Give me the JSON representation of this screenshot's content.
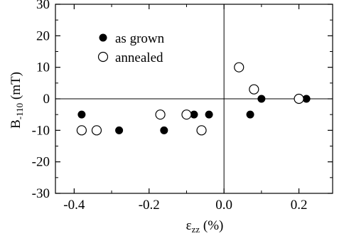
{
  "chart_data": {
    "type": "scatter",
    "xlabel": "ε",
    "xlabel_sub": "zz",
    "xlabel_unit": " (%)",
    "ylabel": "B",
    "ylabel_sub": "-110",
    "ylabel_unit": " (mT)",
    "xlim": [
      -0.45,
      0.29
    ],
    "ylim": [
      -30,
      30
    ],
    "xticks": [
      -0.4,
      -0.2,
      0.0,
      0.2
    ],
    "xtick_labels": [
      "-0.4",
      "-0.2",
      "0.0",
      "0.2"
    ],
    "yticks": [
      -30,
      -20,
      -10,
      0,
      10,
      20,
      30
    ],
    "ytick_labels": [
      "-30",
      "-20",
      "-10",
      "0",
      "10",
      "20",
      "30"
    ],
    "zero_lines": true,
    "legend_position": "top-left",
    "series": [
      {
        "name": "as grown",
        "marker": "filled-circle",
        "color": "#000000",
        "points": [
          {
            "x": -0.38,
            "y": -5
          },
          {
            "x": -0.28,
            "y": -10
          },
          {
            "x": -0.16,
            "y": -10
          },
          {
            "x": -0.08,
            "y": -5
          },
          {
            "x": -0.04,
            "y": -5
          },
          {
            "x": 0.07,
            "y": -5
          },
          {
            "x": 0.1,
            "y": 0
          },
          {
            "x": 0.22,
            "y": 0
          }
        ]
      },
      {
        "name": "annealed",
        "marker": "open-circle",
        "color": "#000000",
        "points": [
          {
            "x": -0.38,
            "y": -10
          },
          {
            "x": -0.34,
            "y": -10
          },
          {
            "x": -0.17,
            "y": -5
          },
          {
            "x": -0.1,
            "y": -5
          },
          {
            "x": -0.06,
            "y": -10
          },
          {
            "x": 0.04,
            "y": 10
          },
          {
            "x": 0.08,
            "y": 3
          },
          {
            "x": 0.2,
            "y": 0
          }
        ]
      }
    ]
  }
}
